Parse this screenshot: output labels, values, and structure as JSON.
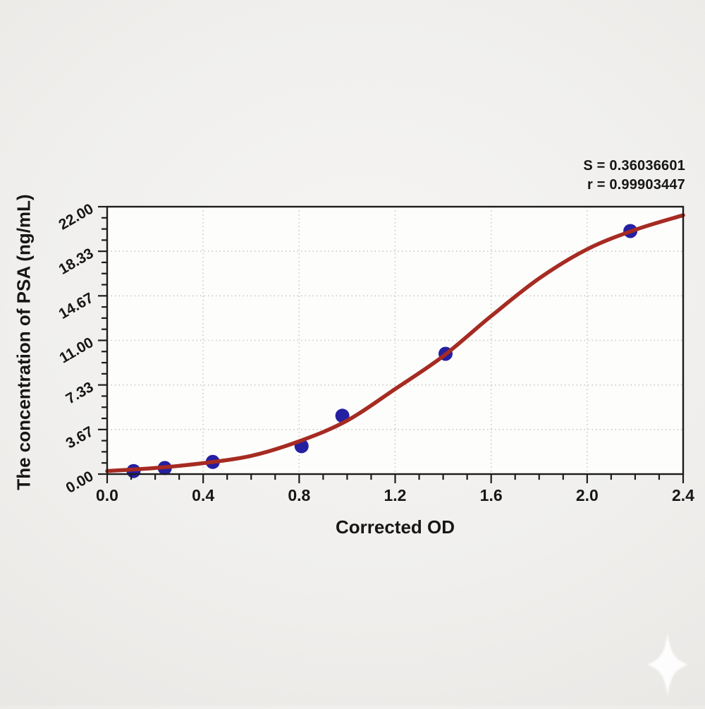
{
  "page": {
    "background": "#efeeec"
  },
  "stats_block": {
    "s_line": "S = 0.36036601",
    "r_line": "r = 0.99903447"
  },
  "chart_data": {
    "type": "scatter",
    "title": "",
    "xlabel": "Corrected OD",
    "ylabel": "The concentration of PSA (ng/mL)",
    "xlim": [
      0,
      2.4
    ],
    "ylim": [
      0,
      22
    ],
    "x_ticks": {
      "major_labels": [
        "0.0",
        "0.4",
        "0.8",
        "1.2",
        "1.6",
        "2.0",
        "2.4"
      ],
      "minors_per_major": 4
    },
    "y_ticks": {
      "major_labels": [
        "0.00",
        "3.67",
        "7.33",
        "11.00",
        "14.67",
        "18.33",
        "22.00"
      ],
      "minors_per_major": 4,
      "label_rotation_deg": -30
    },
    "grid": {
      "visible": true,
      "style": "dotted",
      "on_interior_majors_only": true
    },
    "legend": {
      "visible": false
    },
    "series": [
      {
        "name": "standard-points",
        "type": "scatter",
        "color": "#251fa2",
        "marker_radius": 10,
        "points": [
          [
            0.11,
            0.25
          ],
          [
            0.24,
            0.5
          ],
          [
            0.44,
            1.0
          ],
          [
            0.81,
            2.3
          ],
          [
            0.98,
            4.8
          ],
          [
            1.41,
            9.9
          ],
          [
            2.18,
            20.0
          ]
        ]
      },
      {
        "name": "fit-curve",
        "type": "line",
        "color": "#a62b22",
        "stroke_width": 5.5,
        "points": [
          [
            0.0,
            0.25
          ],
          [
            0.2,
            0.5
          ],
          [
            0.4,
            0.9
          ],
          [
            0.6,
            1.5
          ],
          [
            0.8,
            2.7
          ],
          [
            1.0,
            4.4
          ],
          [
            1.2,
            7.0
          ],
          [
            1.4,
            9.7
          ],
          [
            1.6,
            13.0
          ],
          [
            1.8,
            16.1
          ],
          [
            2.0,
            18.5
          ],
          [
            2.2,
            20.1
          ],
          [
            2.4,
            21.3
          ]
        ]
      }
    ],
    "annotations": [
      "S = 0.36036601",
      "r = 0.99903447"
    ],
    "colors": {
      "curve": "#a62b22",
      "point": "#251fa2",
      "grid": "#c9c8c6",
      "axis": "#1c1c1c",
      "text": "#161616",
      "plot_bg": "#fdfdfc"
    }
  },
  "watermark": {
    "shape": "four-point-star",
    "color": "#ffffff"
  }
}
